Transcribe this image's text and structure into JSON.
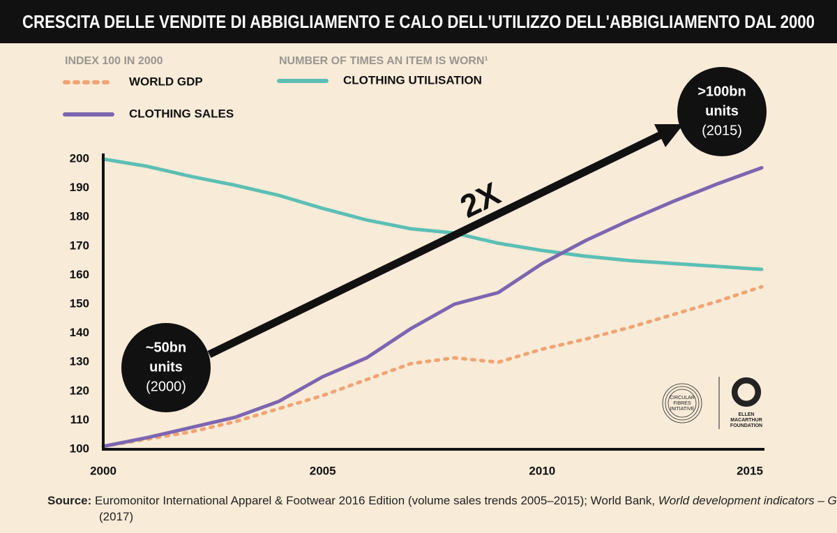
{
  "chart_data": {
    "type": "line",
    "title": "CRESCITA DELLE VENDITE DI ABBIGLIAMENTO E CALO DELL'UTILIZZO DELL'ABBIGLIAMENTO DAL 2000",
    "legend_groups": [
      "INDEX 100 IN 2000",
      "NUMBER OF TIMES AN ITEM IS WORN¹"
    ],
    "x": [
      2000,
      2001,
      2002,
      2003,
      2004,
      2005,
      2006,
      2007,
      2008,
      2009,
      2010,
      2011,
      2012,
      2013,
      2014,
      2015
    ],
    "series": [
      {
        "name": "WORLD GDP",
        "color": "#f0a473",
        "line_style": "dotted",
        "legend_group": 0,
        "values": [
          101,
          103.5,
          106,
          109.5,
          114,
          118.5,
          124,
          129.5,
          131.5,
          130,
          134.5,
          138,
          142,
          146.5,
          151,
          156
        ]
      },
      {
        "name": "CLOTHING SALES",
        "color": "#7c66b1",
        "line_style": "solid",
        "legend_group": 0,
        "values": [
          101,
          104,
          107.5,
          111,
          116.5,
          125,
          131.5,
          141.5,
          150,
          154,
          164,
          172,
          179,
          185.5,
          191.5,
          197
        ]
      },
      {
        "name": "CLOTHING UTILISATION",
        "color": "#5cbfb4",
        "line_style": "solid",
        "legend_group": 1,
        "values": [
          200,
          197.5,
          194,
          191,
          187.5,
          183,
          179,
          176,
          174.5,
          171,
          168.5,
          166.5,
          165,
          164,
          163,
          162
        ]
      }
    ],
    "xlim": [
      2000,
      2015
    ],
    "xticks": [
      2000,
      2005,
      2010,
      2015
    ],
    "ylim": [
      100,
      200
    ],
    "yticks": [
      100,
      110,
      120,
      130,
      140,
      150,
      160,
      170,
      180,
      190,
      200
    ],
    "grid": false,
    "annotations": [
      {
        "lines": [
          "~50bn",
          "units",
          "(2000)"
        ]
      },
      {
        "lines": [
          ">100bn",
          "units",
          "(2015)"
        ]
      },
      {
        "text": "2X"
      }
    ],
    "logos": [
      [
        "CIRCULAR",
        "FIBRES",
        "INITIATIVE"
      ],
      [
        "ELLEN",
        "MACARTHUR",
        "FOUNDATION"
      ]
    ],
    "source": {
      "label": "Source:",
      "text": "Euromonitor International Apparel & Footwear 2016 Edition (volume sales trends 2005–2015); World Bank,",
      "italic": "World development  indicators – GD",
      "end": "(2017)"
    }
  }
}
